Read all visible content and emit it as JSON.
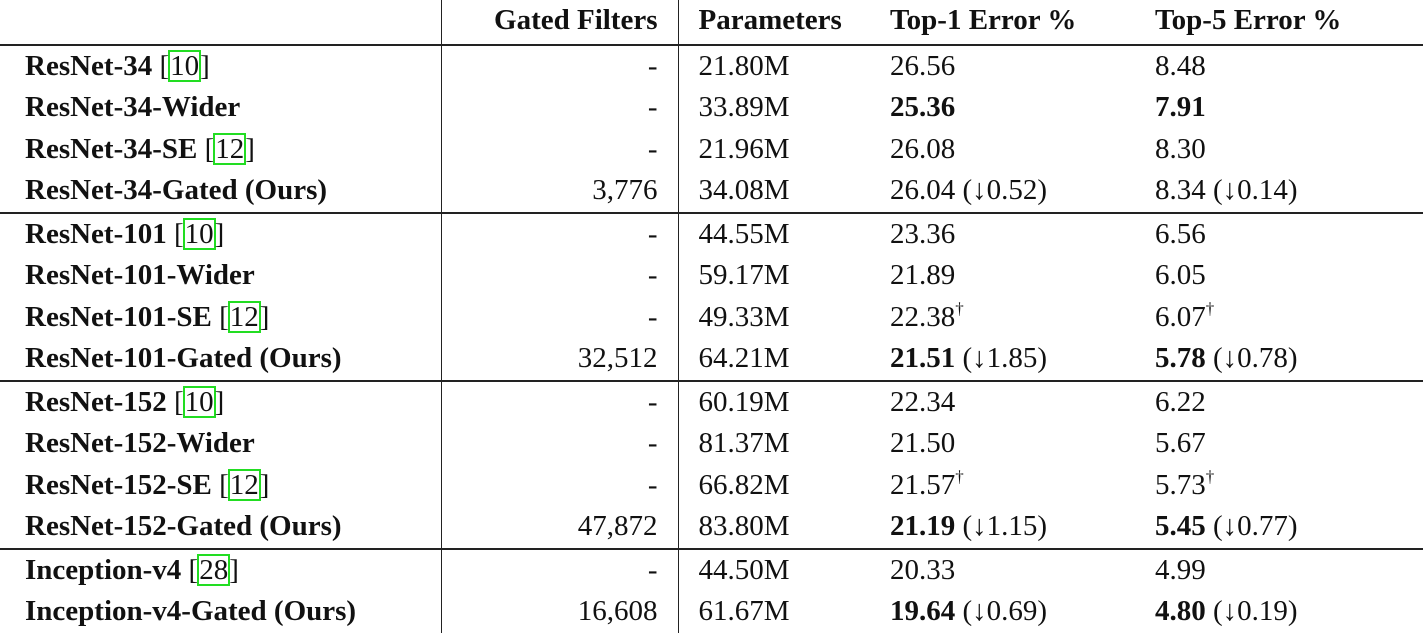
{
  "table": {
    "headers": [
      "",
      "Gated Filters",
      "Parameters",
      "Top-1 Error %",
      "Top-5 Error %"
    ],
    "groups": [
      {
        "rows": [
          {
            "model": "ResNet-34",
            "cite": "10",
            "gated_filters": "-",
            "params": "21.80M",
            "top1": "26.56",
            "top1_bold": false,
            "top1_delta": "",
            "top1_dagger": "",
            "top5": "8.48",
            "top5_bold": false,
            "top5_delta": "",
            "top5_dagger": ""
          },
          {
            "model": "ResNet-34-Wider",
            "cite": "",
            "gated_filters": "-",
            "params": "33.89M",
            "top1": "25.36",
            "top1_bold": true,
            "top1_delta": "",
            "top1_dagger": "",
            "top5": "7.91",
            "top5_bold": true,
            "top5_delta": "",
            "top5_dagger": ""
          },
          {
            "model": "ResNet-34-SE",
            "cite": "12",
            "gated_filters": "-",
            "params": "21.96M",
            "top1": "26.08",
            "top1_bold": false,
            "top1_delta": "",
            "top1_dagger": "",
            "top5": "8.30",
            "top5_bold": false,
            "top5_delta": "",
            "top5_dagger": ""
          },
          {
            "model": "ResNet-34-Gated (Ours)",
            "cite": "",
            "gated_filters": "3,776",
            "params": "34.08M",
            "top1": "26.04",
            "top1_bold": false,
            "top1_delta": " (↓0.52)",
            "top1_dagger": "",
            "top5": "8.34",
            "top5_bold": false,
            "top5_delta": " (↓0.14)",
            "top5_dagger": ""
          }
        ]
      },
      {
        "rows": [
          {
            "model": "ResNet-101",
            "cite": "10",
            "gated_filters": "-",
            "params": "44.55M",
            "top1": "23.36",
            "top1_bold": false,
            "top1_delta": "",
            "top1_dagger": "",
            "top5": "6.56",
            "top5_bold": false,
            "top5_delta": "",
            "top5_dagger": ""
          },
          {
            "model": "ResNet-101-Wider",
            "cite": "",
            "gated_filters": "-",
            "params": "59.17M",
            "top1": "21.89",
            "top1_bold": false,
            "top1_delta": "",
            "top1_dagger": "",
            "top5": "6.05",
            "top5_bold": false,
            "top5_delta": "",
            "top5_dagger": ""
          },
          {
            "model": "ResNet-101-SE",
            "cite": "12",
            "gated_filters": "-",
            "params": "49.33M",
            "top1": "22.38",
            "top1_bold": false,
            "top1_delta": "",
            "top1_dagger": "†",
            "top5": "6.07",
            "top5_bold": false,
            "top5_delta": "",
            "top5_dagger": "†"
          },
          {
            "model": "ResNet-101-Gated (Ours)",
            "cite": "",
            "gated_filters": "32,512",
            "params": "64.21M",
            "top1": "21.51",
            "top1_bold": true,
            "top1_delta": " (↓1.85)",
            "top1_dagger": "",
            "top5": "5.78",
            "top5_bold": true,
            "top5_delta": " (↓0.78)",
            "top5_dagger": ""
          }
        ]
      },
      {
        "rows": [
          {
            "model": "ResNet-152",
            "cite": "10",
            "gated_filters": "-",
            "params": "60.19M",
            "top1": "22.34",
            "top1_bold": false,
            "top1_delta": "",
            "top1_dagger": "",
            "top5": "6.22",
            "top5_bold": false,
            "top5_delta": "",
            "top5_dagger": ""
          },
          {
            "model": "ResNet-152-Wider",
            "cite": "",
            "gated_filters": "-",
            "params": "81.37M",
            "top1": "21.50",
            "top1_bold": false,
            "top1_delta": "",
            "top1_dagger": "",
            "top5": "5.67",
            "top5_bold": false,
            "top5_delta": "",
            "top5_dagger": ""
          },
          {
            "model": "ResNet-152-SE",
            "cite": "12",
            "gated_filters": "-",
            "params": "66.82M",
            "top1": "21.57",
            "top1_bold": false,
            "top1_delta": "",
            "top1_dagger": "†",
            "top5": "5.73",
            "top5_bold": false,
            "top5_delta": "",
            "top5_dagger": "†"
          },
          {
            "model": "ResNet-152-Gated (Ours)",
            "cite": "",
            "gated_filters": "47,872",
            "params": "83.80M",
            "top1": "21.19",
            "top1_bold": true,
            "top1_delta": " (↓1.15)",
            "top1_dagger": "",
            "top5": "5.45",
            "top5_bold": true,
            "top5_delta": " (↓0.77)",
            "top5_dagger": ""
          }
        ]
      },
      {
        "rows": [
          {
            "model": "Inception-v4",
            "cite": "28",
            "gated_filters": "-",
            "params": "44.50M",
            "top1": "20.33",
            "top1_bold": false,
            "top1_delta": "",
            "top1_dagger": "",
            "top5": "4.99",
            "top5_bold": false,
            "top5_delta": "",
            "top5_dagger": ""
          },
          {
            "model": "Inception-v4-Gated (Ours)",
            "cite": "",
            "gated_filters": "16,608",
            "params": "61.67M",
            "top1": "19.64",
            "top1_bold": true,
            "top1_delta": " (↓0.69)",
            "top1_dagger": "",
            "top5": "4.80",
            "top5_bold": true,
            "top5_delta": " (↓0.19)",
            "top5_dagger": ""
          }
        ]
      }
    ]
  },
  "colors": {
    "text": "#111111",
    "rule": "#222222",
    "citation_box": "#22dd22"
  }
}
